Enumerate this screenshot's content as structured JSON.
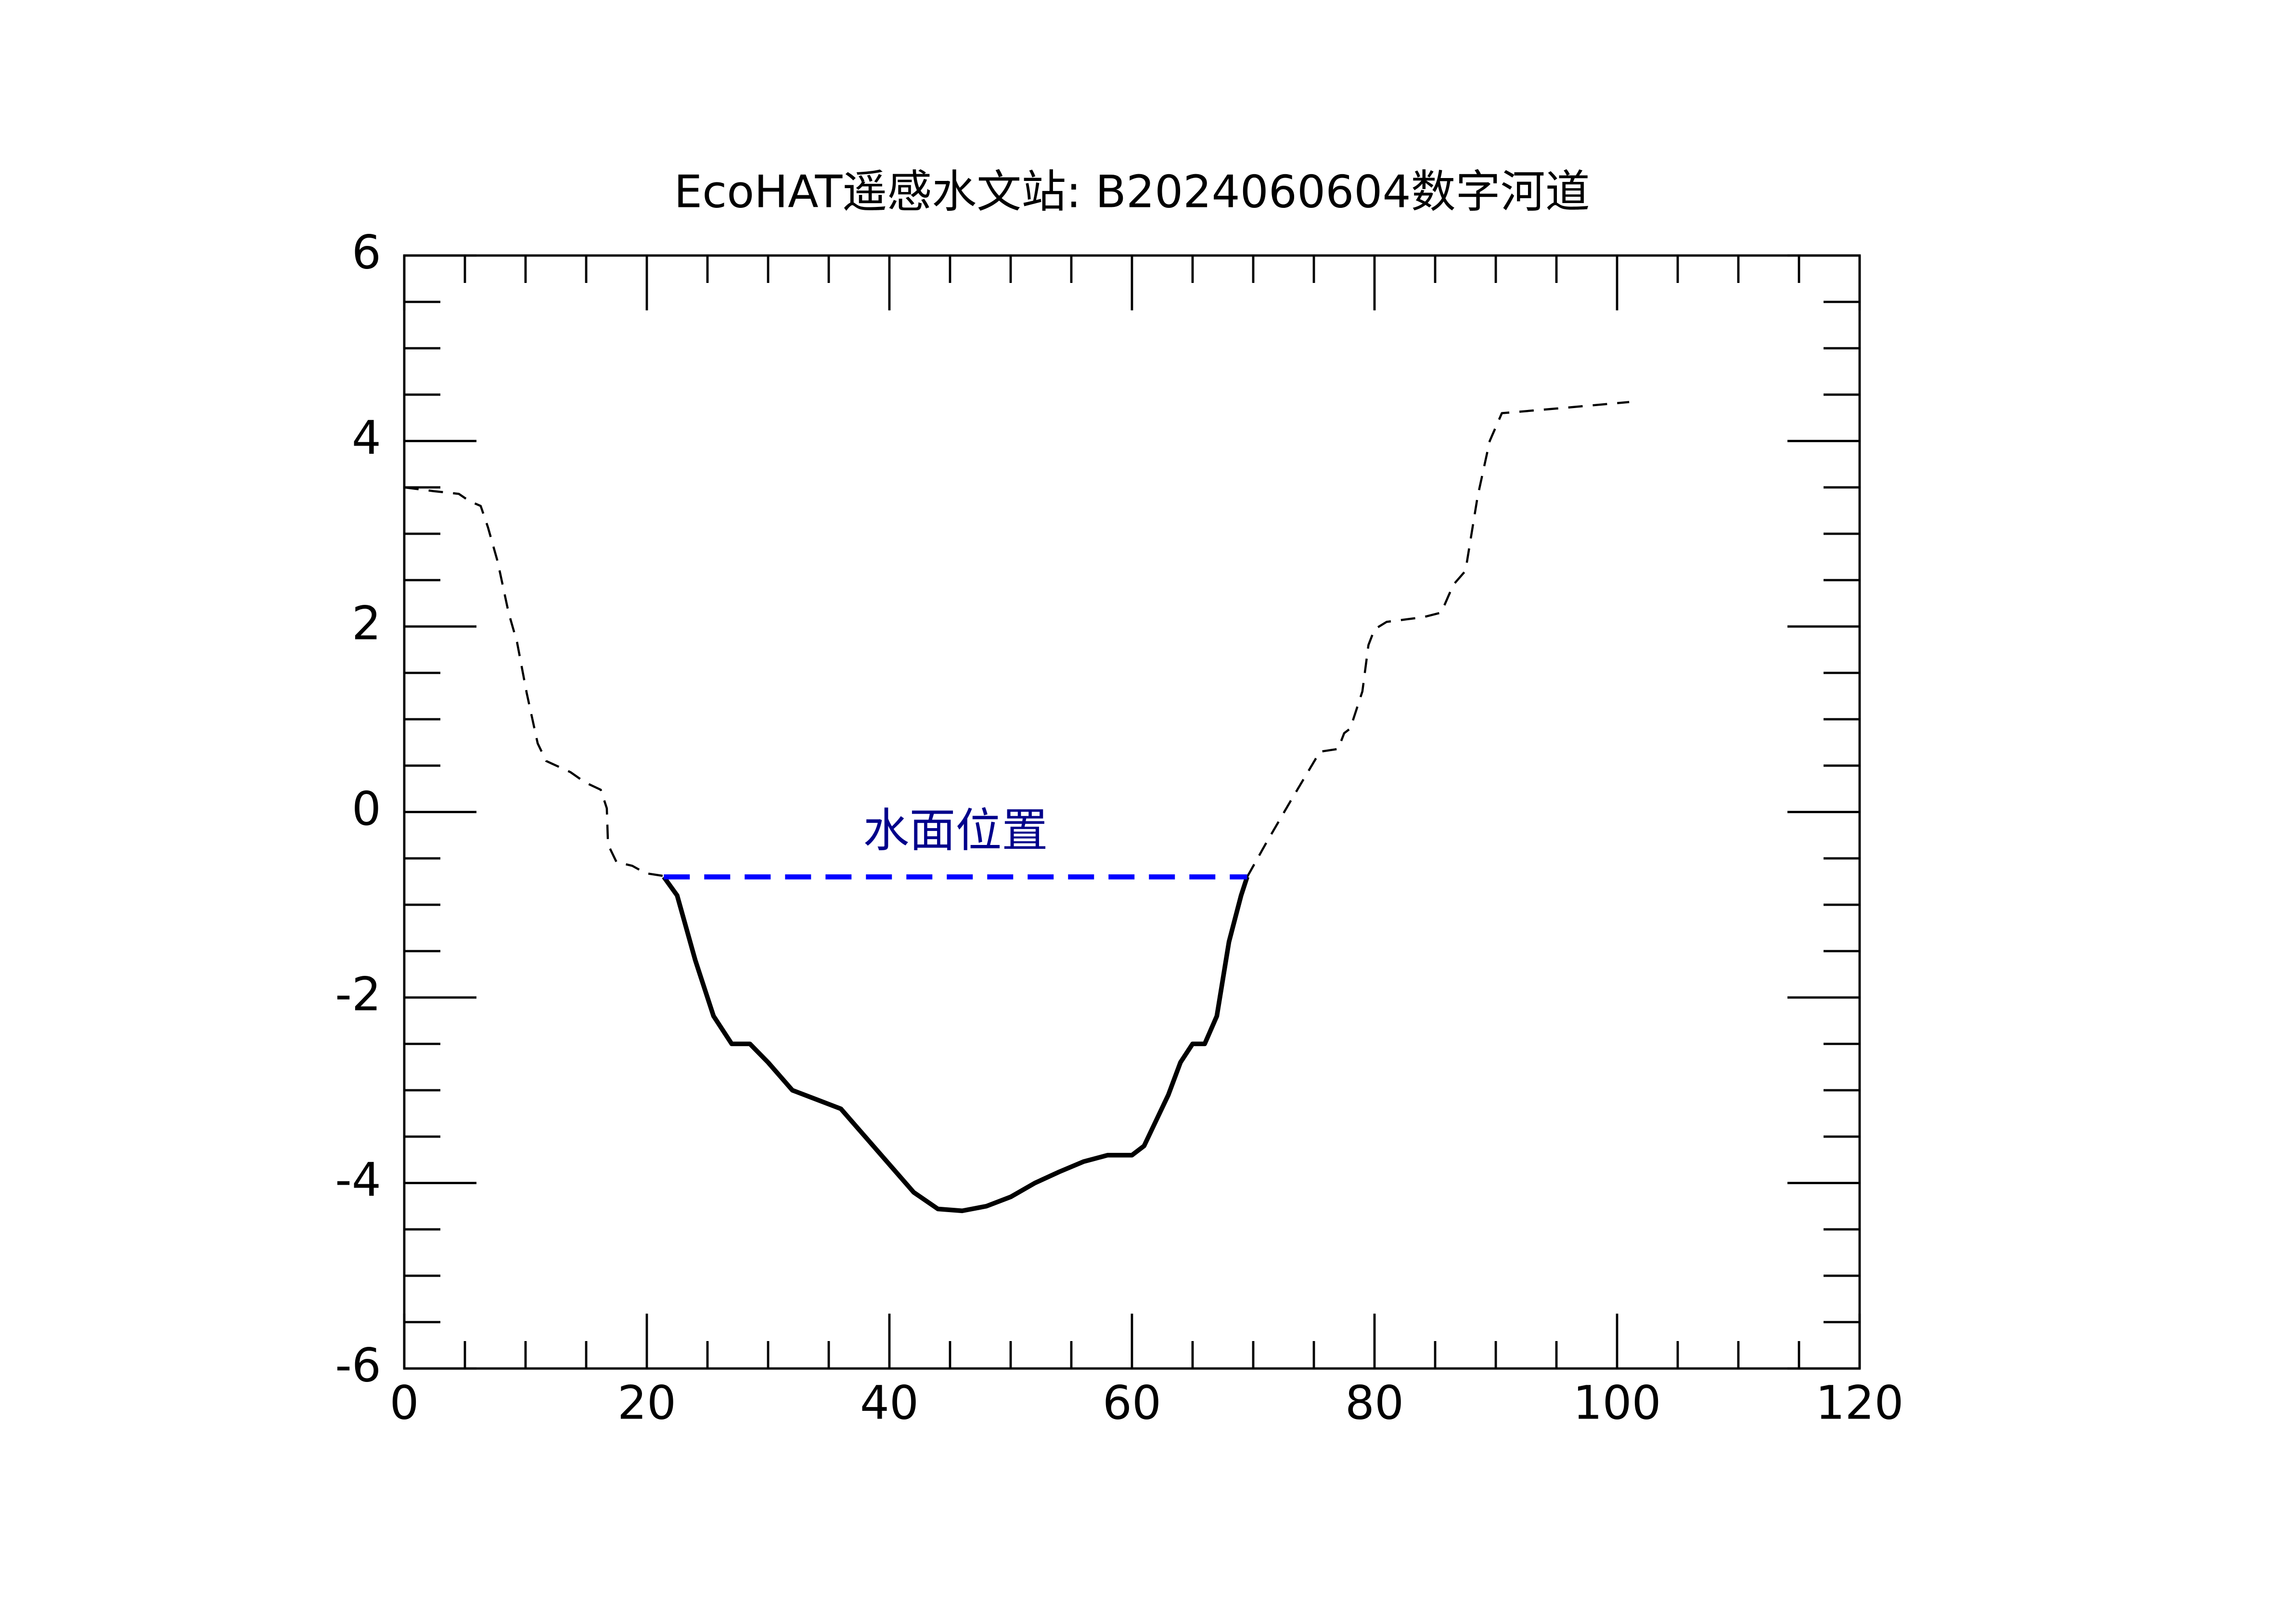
{
  "chart_data": {
    "type": "line",
    "title": "EcoHAT遥感水文站: B2024060604数字河道",
    "xlim": [
      0,
      120
    ],
    "ylim": [
      -6,
      6
    ],
    "xticks": [
      0,
      20,
      40,
      60,
      80,
      100,
      120
    ],
    "yticks": [
      -6,
      -4,
      -2,
      0,
      2,
      4,
      6
    ],
    "xminorticks": [
      5,
      10,
      15,
      25,
      30,
      35,
      45,
      50,
      55,
      65,
      70,
      75,
      85,
      90,
      95,
      105,
      110,
      115
    ],
    "yminorticks": [
      -5.5,
      -5,
      -4.5,
      -3.5,
      -3,
      -2.5,
      -1.5,
      -1,
      -0.5,
      0.5,
      1,
      1.5,
      2.5,
      3,
      3.5,
      4.5,
      5,
      5.5
    ],
    "grid": false,
    "series": [
      {
        "color": "#000000",
        "style": "dashed",
        "width": 1.5,
        "x": [
          0,
          2.4,
          4.5,
          5.4,
          6.3,
          6.9,
          7.7,
          8.6,
          9.3,
          10.1,
          11,
          11.7,
          13.7,
          14.9,
          16.2,
          16.7,
          16.8,
          17.5,
          18.8,
          19.9,
          21.4
        ],
        "values": [
          3.5,
          3.46,
          3.43,
          3.35,
          3.3,
          3.07,
          2.7,
          2.15,
          1.83,
          1.28,
          0.74,
          0.55,
          0.43,
          0.32,
          0.24,
          0.04,
          -0.35,
          -0.54,
          -0.58,
          -0.66,
          -0.69
        ]
      },
      {
        "color": "#000000",
        "style": "solid",
        "width": 3.2,
        "x": [
          21.4,
          22.5,
          24,
          25.5,
          27,
          28.5,
          30,
          32,
          34,
          36,
          38,
          40,
          42,
          44,
          46,
          48,
          50,
          52,
          54,
          56,
          58,
          60,
          61,
          63,
          64,
          65,
          66,
          67,
          68,
          69,
          69.5
        ],
        "values": [
          -0.7,
          -0.9,
          -1.6,
          -2.2,
          -2.5,
          -2.5,
          -2.7,
          -3.0,
          -3.1,
          -3.2,
          -3.5,
          -3.8,
          -4.1,
          -4.28,
          -4.3,
          -4.25,
          -4.15,
          -4.0,
          -3.88,
          -3.77,
          -3.7,
          -3.7,
          -3.6,
          -3.05,
          -2.7,
          -2.5,
          -2.5,
          -2.2,
          -1.4,
          -0.9,
          -0.7
        ]
      },
      {
        "color": "#000000",
        "style": "dashed",
        "width": 1.5,
        "x": [
          69.5,
          71,
          73,
          75.5,
          77,
          77.5,
          78,
          79,
          79.5,
          80,
          81,
          84,
          85.5,
          86.5,
          87.5,
          88,
          88.5,
          89.5,
          90.5,
          95,
          101
        ],
        "values": [
          -0.7,
          -0.35,
          0.1,
          0.65,
          0.68,
          0.85,
          0.9,
          1.3,
          1.8,
          1.97,
          2.05,
          2.1,
          2.15,
          2.45,
          2.6,
          3.0,
          3.4,
          4.0,
          4.3,
          4.35,
          4.42
        ]
      },
      {
        "color": "#0000ff",
        "style": "water",
        "width": 3.5,
        "x": [
          21.4,
          69.5
        ],
        "values": [
          -0.7,
          -0.7
        ]
      }
    ],
    "annotation": {
      "text": "水面位置",
      "color": "#00008b"
    }
  }
}
